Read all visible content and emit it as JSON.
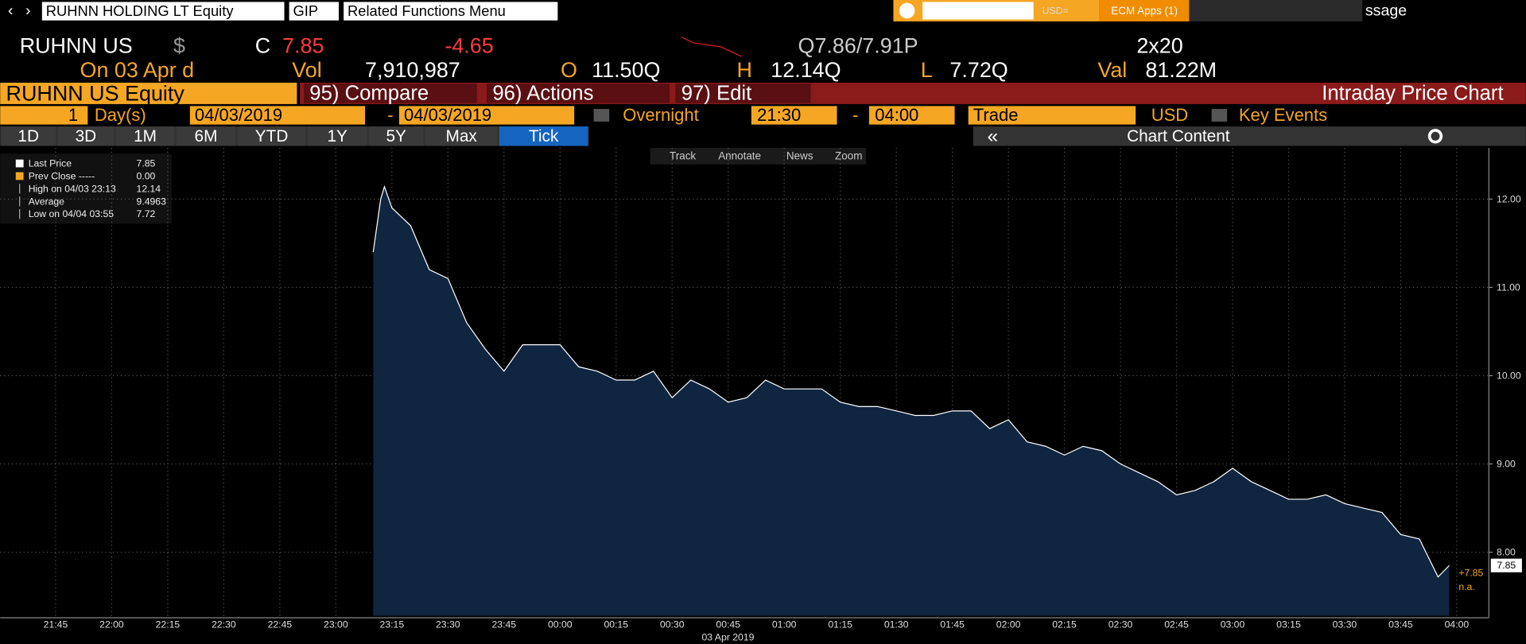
{
  "nav": {
    "security": "RUHNN HOLDING LT Equity",
    "source": "GIP",
    "menu": "Related Functions  Menu",
    "search": "USD=",
    "apps": "ECM Apps (1)",
    "message": "ssage"
  },
  "quote": {
    "ticker": "RUHNN US",
    "currency": "$",
    "close_label": "C",
    "last": "7.85",
    "change": "-4.65",
    "bid_ask": "Q7.86/7.91P",
    "size": "2x20",
    "date": "On 03 Apr d",
    "vol_label": "Vol",
    "volume": "7,910,987",
    "open_label": "O",
    "open": "11.50Q",
    "high_label": "H",
    "high": "12.14Q",
    "low_label": "L",
    "low": "7.72Q",
    "val_label": "Val",
    "value": "81.22M"
  },
  "toolbar": {
    "security": "RUHNN US Equity",
    "buttons": [
      "95) Compare",
      "96) Actions",
      "97) Edit"
    ],
    "function": "Intraday Price Chart"
  },
  "settings": {
    "days": "1",
    "days_unit": "Day(s)",
    "start": "04/03/2019",
    "dash": "-",
    "end": "04/03/2019",
    "overnight": "Overnight",
    "from": "21:30",
    "to": "04:00",
    "field": "Trade",
    "currency": "USD",
    "events": "Key Events"
  },
  "ranges": [
    "1D",
    "3D",
    "1M",
    "6M",
    "YTD",
    "1Y",
    "5Y",
    "Max",
    "Tick"
  ],
  "content": "Chart Content",
  "tools": [
    "Track",
    "Annotate",
    "News",
    "Zoom"
  ],
  "chart_data": {
    "type": "area",
    "x": [
      "23:10",
      "23:12",
      "23:13",
      "23:15",
      "23:20",
      "23:25",
      "23:30",
      "23:35",
      "23:40",
      "23:45",
      "23:50",
      "23:55",
      "00:00",
      "00:05",
      "00:10",
      "00:15",
      "00:20",
      "00:25",
      "00:30",
      "00:35",
      "00:40",
      "00:45",
      "00:50",
      "00:55",
      "01:00",
      "01:05",
      "01:10",
      "01:15",
      "01:20",
      "01:25",
      "01:30",
      "01:35",
      "01:40",
      "01:45",
      "01:50",
      "01:55",
      "02:00",
      "02:05",
      "02:10",
      "02:15",
      "02:20",
      "02:25",
      "02:30",
      "02:35",
      "02:40",
      "02:45",
      "02:50",
      "02:55",
      "03:00",
      "03:05",
      "03:10",
      "03:15",
      "03:20",
      "03:25",
      "03:30",
      "03:35",
      "03:40",
      "03:45",
      "03:50",
      "03:55",
      "03:58"
    ],
    "series": [
      {
        "name": "Last Price",
        "color": "#ffffff",
        "fill": "#0f2540",
        "values": [
          11.4,
          12.0,
          12.14,
          11.9,
          11.7,
          11.2,
          11.1,
          10.6,
          10.3,
          10.05,
          10.35,
          10.35,
          10.35,
          10.1,
          10.05,
          9.95,
          9.95,
          10.05,
          9.75,
          9.95,
          9.85,
          9.7,
          9.75,
          9.95,
          9.85,
          9.85,
          9.85,
          9.7,
          9.65,
          9.65,
          9.6,
          9.55,
          9.55,
          9.6,
          9.6,
          9.4,
          9.5,
          9.25,
          9.2,
          9.1,
          9.2,
          9.15,
          9.0,
          8.9,
          8.8,
          8.65,
          8.7,
          8.8,
          8.95,
          8.8,
          8.7,
          8.6,
          8.6,
          8.65,
          8.55,
          8.5,
          8.45,
          8.2,
          8.15,
          7.72,
          7.85
        ]
      }
    ],
    "xlim": [
      "21:45",
      "04:00"
    ],
    "xticks": [
      "21:45",
      "22:00",
      "22:15",
      "22:30",
      "22:45",
      "23:00",
      "23:15",
      "23:30",
      "23:45",
      "00:00",
      "00:15",
      "00:30",
      "00:45",
      "01:00",
      "01:15",
      "01:30",
      "01:45",
      "02:00",
      "02:15",
      "02:30",
      "02:45",
      "03:00",
      "03:15",
      "03:30",
      "03:45",
      "04:00"
    ],
    "xlabel": "03 Apr 2019",
    "ylim": [
      7.28,
      12.58
    ],
    "yticks": [
      {
        "value": 8,
        "label": "8.00"
      },
      {
        "value": 9,
        "label": "9.00"
      },
      {
        "value": 10,
        "label": "10.00"
      },
      {
        "value": 11,
        "label": "11.00"
      },
      {
        "value": 12,
        "label": "12.00"
      }
    ],
    "grid": true,
    "legend_stats": [
      {
        "value": "7.85"
      },
      {
        "label": "Prev Close -----",
        "value": "0.00"
      },
      {
        "label": "High on 04/03 23:13",
        "value": "12.14"
      },
      {
        "label": "Average",
        "value": "9.4963"
      },
      {
        "label": "Low on 04/04 03:55",
        "value": "7.72"
      }
    ],
    "tags": {
      "last": "7.85",
      "change": "+7.85",
      "prev": "n.a."
    }
  }
}
